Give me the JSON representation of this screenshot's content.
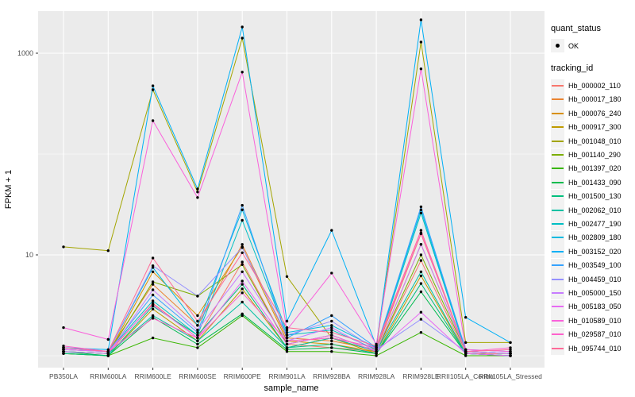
{
  "chart_data": {
    "type": "line",
    "title": "",
    "xlabel": "sample_name",
    "ylabel": "FPKM + 1",
    "y_scale": "log10",
    "y_major_ticks": [
      10,
      1000
    ],
    "y_minor_gridlines": [
      1,
      100
    ],
    "ylim": [
      0.76,
      2800
    ],
    "grid": true,
    "legend_position": "right",
    "panel_bg": "#EBEBEB",
    "grid_color": "#FFFFFF",
    "tick_label_color": "#4D4D4D",
    "tick_mark_color": "#333333",
    "point_color": "#000000",
    "categories": [
      "PB350LA",
      "RRIM600LA",
      "RRIM600LE",
      "RRIM600SE",
      "RRIM600PE",
      "RRIM901LA",
      "RRIM928BA",
      "RRIM928LA",
      "RRIM928LE",
      "RRII105LA_Control",
      "RRII105LA_Stressed"
    ],
    "series": [
      {
        "name": "Hb_000002_110",
        "color": "#F8766D",
        "values": [
          1.1,
          1.05,
          3.3,
          1.5,
          8.5,
          1.3,
          1.2,
          1.1,
          8.8,
          1.05,
          1.05
        ]
      },
      {
        "name": "Hb_000017_180",
        "color": "#EA8331",
        "values": [
          1.15,
          1.1,
          5.1,
          2.0,
          12.7,
          1.5,
          1.4,
          1.15,
          16.2,
          1.1,
          1.05
        ]
      },
      {
        "name": "Hb_000076_240",
        "color": "#D89000",
        "values": [
          1.1,
          1.05,
          6.8,
          2.5,
          12.0,
          1.4,
          1.3,
          1.1,
          12.7,
          1.1,
          1.05
        ]
      },
      {
        "name": "Hb_000917_300",
        "color": "#C09B00",
        "values": [
          1.05,
          1.0,
          2.9,
          1.4,
          4.6,
          1.2,
          1.5,
          1.05,
          6.2,
          1.05,
          1.0
        ]
      },
      {
        "name": "Hb_001048_010",
        "color": "#A3A500",
        "values": [
          12,
          11,
          434,
          42,
          1410,
          6.1,
          1.5,
          1.2,
          1290,
          1.35,
          1.35
        ]
      },
      {
        "name": "Hb_001140_290",
        "color": "#7CAE00",
        "values": [
          1.1,
          1.05,
          5.4,
          3.9,
          8.0,
          1.3,
          1.6,
          1.1,
          10.0,
          1.1,
          1.05
        ]
      },
      {
        "name": "Hb_001397_020",
        "color": "#39B600",
        "values": [
          1.05,
          1.0,
          1.5,
          1.2,
          2.5,
          1.1,
          1.1,
          1.0,
          1.7,
          1.0,
          1.0
        ]
      },
      {
        "name": "Hb_001433_090",
        "color": "#00BB4E",
        "values": [
          1.1,
          1.0,
          2.4,
          1.3,
          2.6,
          1.15,
          1.2,
          1.05,
          4.3,
          1.05,
          1.0
        ]
      },
      {
        "name": "Hb_001500_130",
        "color": "#00BF7D",
        "values": [
          1.05,
          1.0,
          3.1,
          1.6,
          5.1,
          1.2,
          1.3,
          1.05,
          5.2,
          1.05,
          1.0
        ]
      },
      {
        "name": "Hb_002062_010",
        "color": "#00C1A3",
        "values": [
          1.1,
          1.05,
          2.5,
          1.4,
          3.4,
          1.2,
          1.5,
          1.1,
          6.8,
          1.05,
          1.0
        ]
      },
      {
        "name": "Hb_002477_190",
        "color": "#00BFC4",
        "values": [
          1.15,
          1.1,
          3.5,
          1.6,
          22,
          1.6,
          1.8,
          1.15,
          26,
          1.1,
          1.05
        ]
      },
      {
        "name": "Hb_002809_180",
        "color": "#00BAE0",
        "values": [
          1.2,
          1.1,
          7.5,
          2.0,
          28,
          1.7,
          2.0,
          1.2,
          28,
          1.1,
          1.05
        ]
      },
      {
        "name": "Hb_003152_020",
        "color": "#00B0F6",
        "values": [
          1.2,
          1.15,
          475,
          45,
          1820,
          2.2,
          17.5,
          1.25,
          2140,
          2.4,
          1.35
        ]
      },
      {
        "name": "Hb_003549_100",
        "color": "#35A2FF",
        "values": [
          1.2,
          1.1,
          4.0,
          1.7,
          31,
          1.5,
          2.5,
          1.2,
          30,
          1.15,
          1.1
        ]
      },
      {
        "name": "Hb_004459_010",
        "color": "#9590FF",
        "values": [
          1.15,
          1.1,
          7.8,
          3.9,
          11.8,
          1.6,
          2.2,
          1.15,
          2.3,
          1.1,
          1.05
        ]
      },
      {
        "name": "Hb_005000_150",
        "color": "#C77CFF",
        "values": [
          1.1,
          1.05,
          4.5,
          1.8,
          6.8,
          1.4,
          1.9,
          1.1,
          12.7,
          1.1,
          1.05
        ]
      },
      {
        "name": "Hb_005183_050",
        "color": "#E76BF3",
        "values": [
          1.15,
          1.1,
          3.2,
          1.5,
          5.5,
          1.3,
          1.6,
          1.1,
          2.7,
          1.05,
          1.0
        ]
      },
      {
        "name": "Hb_010589_010",
        "color": "#FA62DB",
        "values": [
          1.9,
          1.45,
          214,
          37,
          650,
          1.8,
          6.6,
          1.3,
          700,
          1.15,
          1.1
        ]
      },
      {
        "name": "Hb_029587_010",
        "color": "#FF61CC",
        "values": [
          1.25,
          1.1,
          2.35,
          1.5,
          4.2,
          1.4,
          1.5,
          1.2,
          16.5,
          1.1,
          1.2
        ]
      },
      {
        "name": "Hb_095744_010",
        "color": "#FF6A98",
        "values": [
          1.2,
          1.1,
          9.3,
          2.2,
          10.5,
          1.9,
          1.7,
          1.25,
          17.5,
          1.1,
          1.15
        ]
      }
    ],
    "legend": {
      "quant_status_title": "quant_status",
      "quant_status_items": [
        "OK"
      ],
      "tracking_title": "tracking_id"
    }
  }
}
